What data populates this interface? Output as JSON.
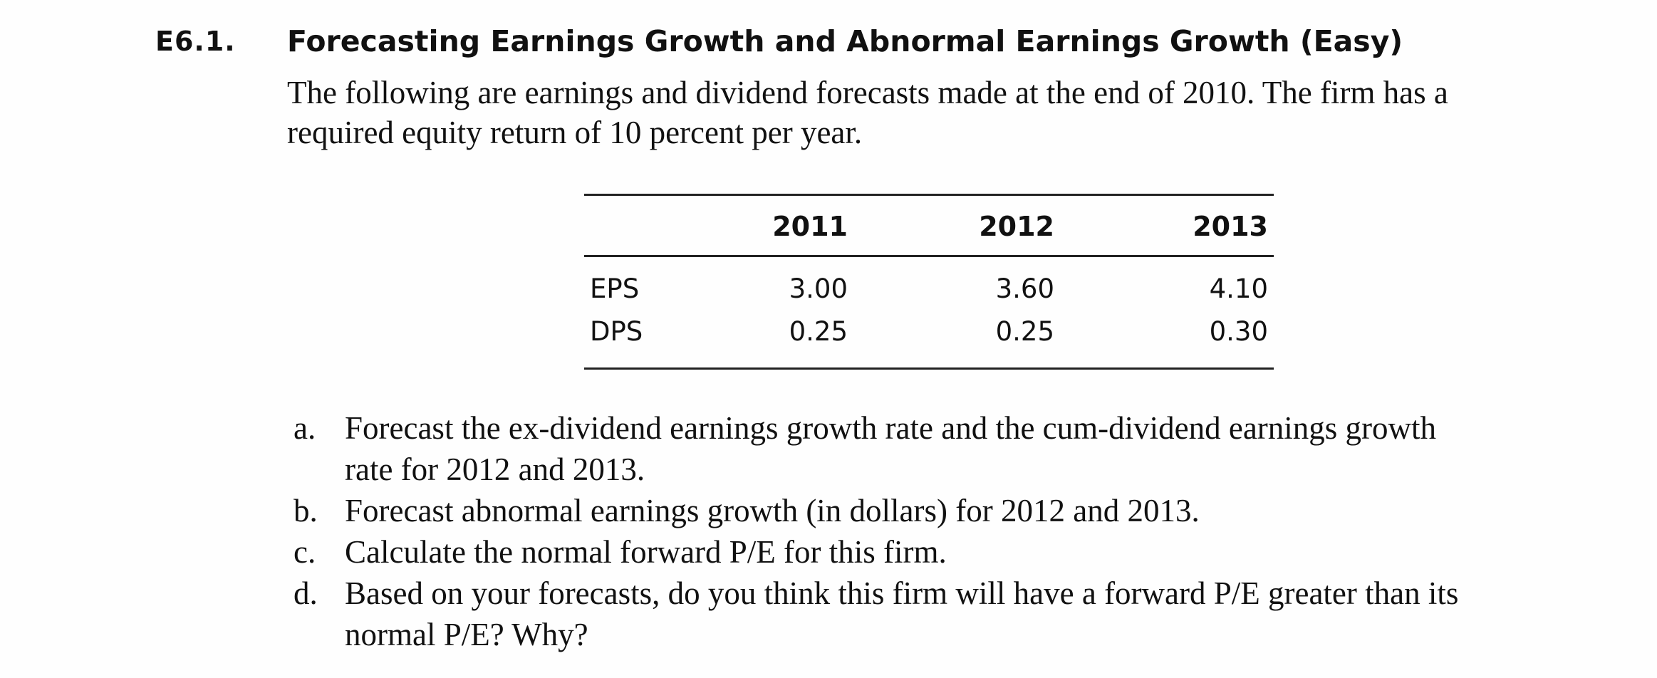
{
  "exercise": {
    "number": "E6.1.",
    "title": "Forecasting Earnings Growth and Abnormal Earnings Growth (Easy)",
    "intro_lines": [
      "The following are earnings and dividend forecasts made at the end of 2010. The firm has a",
      "required equity return of 10 percent per year."
    ]
  },
  "table": {
    "headers": [
      "",
      "2011",
      "2012",
      "2013"
    ],
    "rows": [
      {
        "label": "EPS",
        "values": [
          "3.00",
          "3.60",
          "4.10"
        ]
      },
      {
        "label": "DPS",
        "values": [
          "0.25",
          "0.25",
          "0.30"
        ]
      }
    ]
  },
  "questions": [
    {
      "letter": "a.",
      "lines": [
        "Forecast the ex-dividend earnings growth rate and the cum-dividend earnings growth",
        "rate for 2012 and 2013."
      ]
    },
    {
      "letter": "b.",
      "lines": [
        "Forecast abnormal earnings growth (in dollars) for 2012 and 2013."
      ]
    },
    {
      "letter": "c.",
      "lines": [
        "Calculate the normal forward P/E for this firm."
      ]
    },
    {
      "letter": "d.",
      "lines": [
        "Based on your forecasts, do you think this firm will have a forward P/E greater than its",
        "normal P/E? Why?"
      ]
    }
  ]
}
